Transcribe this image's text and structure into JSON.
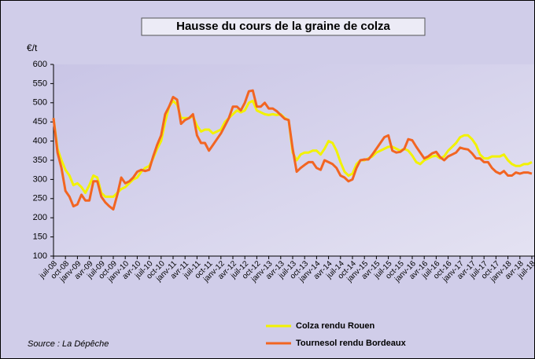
{
  "chart_data": {
    "type": "line",
    "title": "Hausse du cours de la graine de colza",
    "y_label": "€/t",
    "source": "Source : La Dépêche",
    "categories": [
      "juil-08",
      null,
      null,
      "oct-08",
      null,
      null,
      "janv-09",
      null,
      null,
      "avr-09",
      null,
      null,
      "juil-09",
      null,
      null,
      "oct-09",
      null,
      null,
      "janv-10",
      null,
      null,
      "avr-10",
      null,
      null,
      "juil-10",
      null,
      null,
      "oct-10",
      null,
      null,
      "janv-11",
      null,
      null,
      "avr-11",
      null,
      null,
      "juil-11",
      null,
      null,
      "oct-11",
      null,
      null,
      "janv-12",
      null,
      null,
      "avr-12",
      null,
      null,
      "juil-12",
      null,
      null,
      "oct-12",
      null,
      null,
      "janv-13",
      null,
      null,
      "avr-13",
      null,
      null,
      "juil-13",
      null,
      null,
      "oct-13",
      null,
      null,
      "janv-14",
      null,
      null,
      "avr-14",
      null,
      null,
      "juil-14",
      null,
      null,
      "oct-14",
      null,
      null,
      "janv-15",
      null,
      null,
      "avr-15",
      null,
      null,
      "juil-15",
      null,
      null,
      "oct-15",
      null,
      null,
      "janv-16",
      null,
      null,
      "avr-16",
      null,
      null,
      "juil-16",
      null,
      null,
      "oct-16",
      null,
      null,
      "janv-17",
      null,
      null,
      "avr-17",
      null,
      null,
      "juil-17",
      null,
      null,
      "oct-17",
      null,
      null,
      "janv-18",
      null,
      null,
      "avr-18",
      null,
      null,
      "juil-18"
    ],
    "series": [
      {
        "name": "Colza rendu Rouen",
        "color": "#f2f200",
        "values": [
          460,
          380,
          350,
          325,
          310,
          285,
          290,
          280,
          265,
          285,
          310,
          305,
          265,
          255,
          255,
          255,
          265,
          275,
          280,
          290,
          300,
          305,
          320,
          330,
          335,
          355,
          380,
          400,
          450,
          490,
          505,
          495,
          460,
          460,
          460,
          465,
          440,
          425,
          430,
          430,
          420,
          425,
          430,
          450,
          460,
          470,
          480,
          475,
          480,
          500,
          505,
          480,
          475,
          470,
          468,
          470,
          468,
          470,
          460,
          455,
          370,
          350,
          365,
          370,
          370,
          375,
          375,
          365,
          380,
          400,
          395,
          375,
          345,
          320,
          310,
          315,
          340,
          350,
          350,
          355,
          360,
          370,
          375,
          380,
          385,
          385,
          380,
          375,
          380,
          375,
          362,
          345,
          340,
          350,
          355,
          360,
          362,
          355,
          360,
          375,
          385,
          395,
          410,
          415,
          415,
          405,
          390,
          365,
          355,
          355,
          360,
          360,
          360,
          365,
          350,
          340,
          335,
          335,
          340,
          340,
          345
        ]
      },
      {
        "name": "Tournesol rendu Bordeaux",
        "color": "#f26522",
        "values": [
          460,
          370,
          330,
          270,
          255,
          230,
          235,
          260,
          245,
          245,
          295,
          295,
          255,
          240,
          230,
          222,
          260,
          305,
          290,
          295,
          305,
          320,
          325,
          322,
          325,
          360,
          390,
          415,
          470,
          490,
          515,
          508,
          445,
          455,
          460,
          470,
          415,
          395,
          395,
          375,
          390,
          405,
          420,
          440,
          460,
          490,
          490,
          480,
          500,
          530,
          532,
          490,
          490,
          500,
          485,
          485,
          478,
          468,
          458,
          455,
          380,
          320,
          330,
          338,
          345,
          345,
          330,
          325,
          350,
          345,
          340,
          330,
          310,
          305,
          295,
          300,
          330,
          350,
          352,
          352,
          365,
          380,
          395,
          410,
          415,
          375,
          370,
          372,
          380,
          405,
          402,
          385,
          370,
          355,
          360,
          368,
          372,
          358,
          350,
          360,
          365,
          370,
          383,
          380,
          378,
          368,
          355,
          355,
          345,
          345,
          330,
          320,
          315,
          322,
          310,
          310,
          318,
          315,
          318,
          318,
          315
        ]
      }
    ],
    "ylim": [
      100,
      600
    ],
    "yticks": [
      100,
      150,
      200,
      250,
      300,
      350,
      400,
      450,
      500,
      550,
      600
    ]
  }
}
